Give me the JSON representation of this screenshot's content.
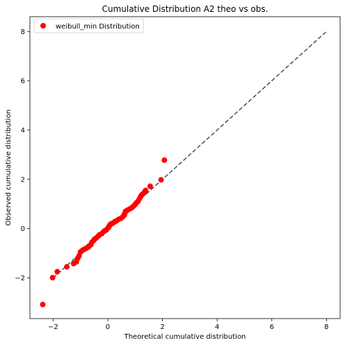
{
  "chart_data": {
    "type": "scatter",
    "title": "Cumulative Distribution A2 theo vs obs.",
    "xlabel": "Theoretical cumulative distribution",
    "ylabel": "Observed cumulative distribution",
    "xlim": [
      -2.85,
      8.5
    ],
    "ylim": [
      -3.65,
      8.6
    ],
    "xticks": [
      -2,
      0,
      2,
      4,
      6,
      8
    ],
    "yticks": [
      -2,
      0,
      2,
      4,
      6,
      8
    ],
    "grid": false,
    "legend_position": "top-left",
    "series": [
      {
        "name": "weibull_min Distribution",
        "color": "#ff0000",
        "marker": "circle",
        "points": [
          [
            -2.38,
            -3.08
          ],
          [
            -2.02,
            -1.99
          ],
          [
            -1.85,
            -1.75
          ],
          [
            -1.5,
            -1.55
          ],
          [
            -1.25,
            -1.42
          ],
          [
            -1.15,
            -1.35
          ],
          [
            -1.1,
            -1.2
          ],
          [
            -1.05,
            -1.1
          ],
          [
            -1.0,
            -0.95
          ],
          [
            -0.95,
            -0.9
          ],
          [
            -0.88,
            -0.85
          ],
          [
            -0.8,
            -0.8
          ],
          [
            -0.72,
            -0.75
          ],
          [
            -0.68,
            -0.7
          ],
          [
            -0.62,
            -0.65
          ],
          [
            -0.58,
            -0.55
          ],
          [
            -0.52,
            -0.48
          ],
          [
            -0.48,
            -0.42
          ],
          [
            -0.42,
            -0.38
          ],
          [
            -0.35,
            -0.3
          ],
          [
            -0.3,
            -0.25
          ],
          [
            -0.22,
            -0.2
          ],
          [
            -0.15,
            -0.12
          ],
          [
            -0.1,
            -0.08
          ],
          [
            -0.05,
            -0.05
          ],
          [
            0.02,
            0.05
          ],
          [
            0.05,
            0.1
          ],
          [
            0.08,
            0.15
          ],
          [
            0.12,
            0.2
          ],
          [
            0.18,
            0.22
          ],
          [
            0.25,
            0.28
          ],
          [
            0.32,
            0.32
          ],
          [
            0.4,
            0.38
          ],
          [
            0.48,
            0.42
          ],
          [
            0.55,
            0.48
          ],
          [
            0.6,
            0.55
          ],
          [
            0.62,
            0.62
          ],
          [
            0.65,
            0.7
          ],
          [
            0.72,
            0.75
          ],
          [
            0.8,
            0.8
          ],
          [
            0.88,
            0.85
          ],
          [
            0.95,
            0.92
          ],
          [
            1.0,
            0.98
          ],
          [
            1.05,
            1.05
          ],
          [
            1.1,
            1.1
          ],
          [
            1.15,
            1.2
          ],
          [
            1.2,
            1.3
          ],
          [
            1.25,
            1.38
          ],
          [
            1.32,
            1.45
          ],
          [
            1.38,
            1.55
          ],
          [
            1.55,
            1.72
          ],
          [
            1.95,
            1.98
          ],
          [
            2.07,
            2.78
          ]
        ]
      }
    ],
    "reference_line": {
      "style": "dashed",
      "color": "#444444",
      "from": [
        -2.0,
        -2.0
      ],
      "to": [
        8.0,
        8.0
      ]
    }
  }
}
